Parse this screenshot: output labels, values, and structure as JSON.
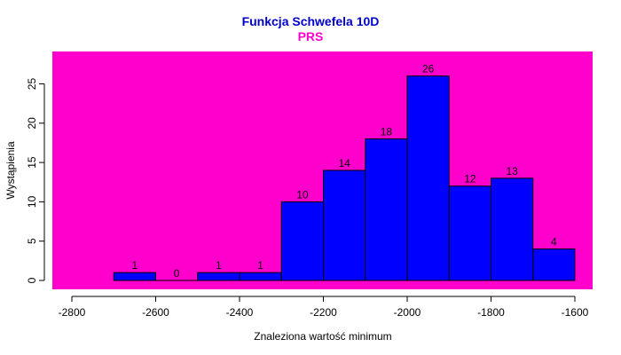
{
  "colors": {
    "panel": "#ff00cc",
    "bar_fill": "#0000ff",
    "bar_stroke": "#000000",
    "title": "#0000cc",
    "subtitle": "#ff00cc",
    "axis": "#000000"
  },
  "chart_data": {
    "type": "bar",
    "title": "Funkcja Schwefela 10D",
    "subtitle": "PRS",
    "xlabel": "Znaleziona wartość minimum",
    "ylabel": "Wystąpienia",
    "xlim": [
      -2800,
      -1600
    ],
    "ylim": [
      0,
      26
    ],
    "x_ticks": [
      -2800,
      -2600,
      -2400,
      -2200,
      -2000,
      -1800,
      -1600
    ],
    "y_ticks": [
      0,
      5,
      10,
      15,
      20,
      25
    ],
    "bins": [
      {
        "start": -2700,
        "end": -2600,
        "count": 1
      },
      {
        "start": -2600,
        "end": -2500,
        "count": 0
      },
      {
        "start": -2500,
        "end": -2400,
        "count": 1
      },
      {
        "start": -2400,
        "end": -2300,
        "count": 1
      },
      {
        "start": -2300,
        "end": -2200,
        "count": 10
      },
      {
        "start": -2200,
        "end": -2100,
        "count": 14
      },
      {
        "start": -2100,
        "end": -2000,
        "count": 18
      },
      {
        "start": -2000,
        "end": -1900,
        "count": 26
      },
      {
        "start": -1900,
        "end": -1800,
        "count": 12
      },
      {
        "start": -1800,
        "end": -1700,
        "count": 13
      },
      {
        "start": -1700,
        "end": -1600,
        "count": 4
      }
    ],
    "grid": false,
    "legend": "none"
  }
}
